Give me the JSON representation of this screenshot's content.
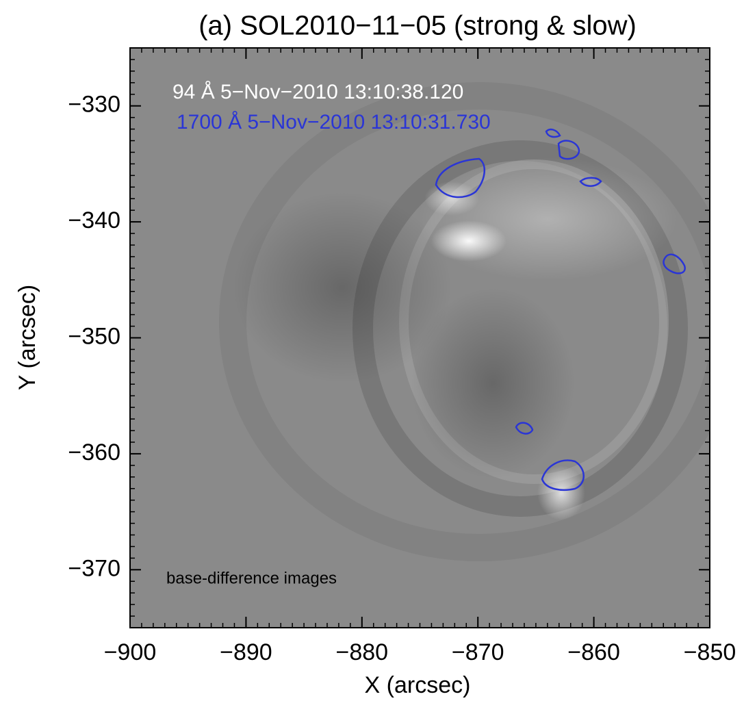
{
  "chart_data": {
    "type": "image",
    "title": "(a) SOL2010−11−05 (strong & slow)",
    "xlabel": "X (arcsec)",
    "ylabel": "Y (arcsec)",
    "xlim": [
      -900,
      -850
    ],
    "ylim": [
      -375,
      -325
    ],
    "xticks": [
      {
        "value": -900,
        "label": "−900"
      },
      {
        "value": -890,
        "label": "−890"
      },
      {
        "value": -880,
        "label": "−880"
      },
      {
        "value": -870,
        "label": "−870"
      },
      {
        "value": -860,
        "label": "−860"
      },
      {
        "value": -850,
        "label": "−850"
      }
    ],
    "yticks": [
      {
        "value": -370,
        "label": "−370"
      },
      {
        "value": -360,
        "label": "−360"
      },
      {
        "value": -350,
        "label": "−350"
      },
      {
        "value": -340,
        "label": "−340"
      },
      {
        "value": -330,
        "label": "−330"
      }
    ],
    "annotations": [
      {
        "text": "94 Å  5−Nov−2010 13:10:38.120",
        "color": "#ffffff"
      },
      {
        "text": "1700 Å  5−Nov−2010 13:10:31.730",
        "color": "#2a35d6"
      },
      {
        "text": "base-difference images",
        "color": "#000000"
      }
    ],
    "contour_color": "#2a35d6"
  }
}
